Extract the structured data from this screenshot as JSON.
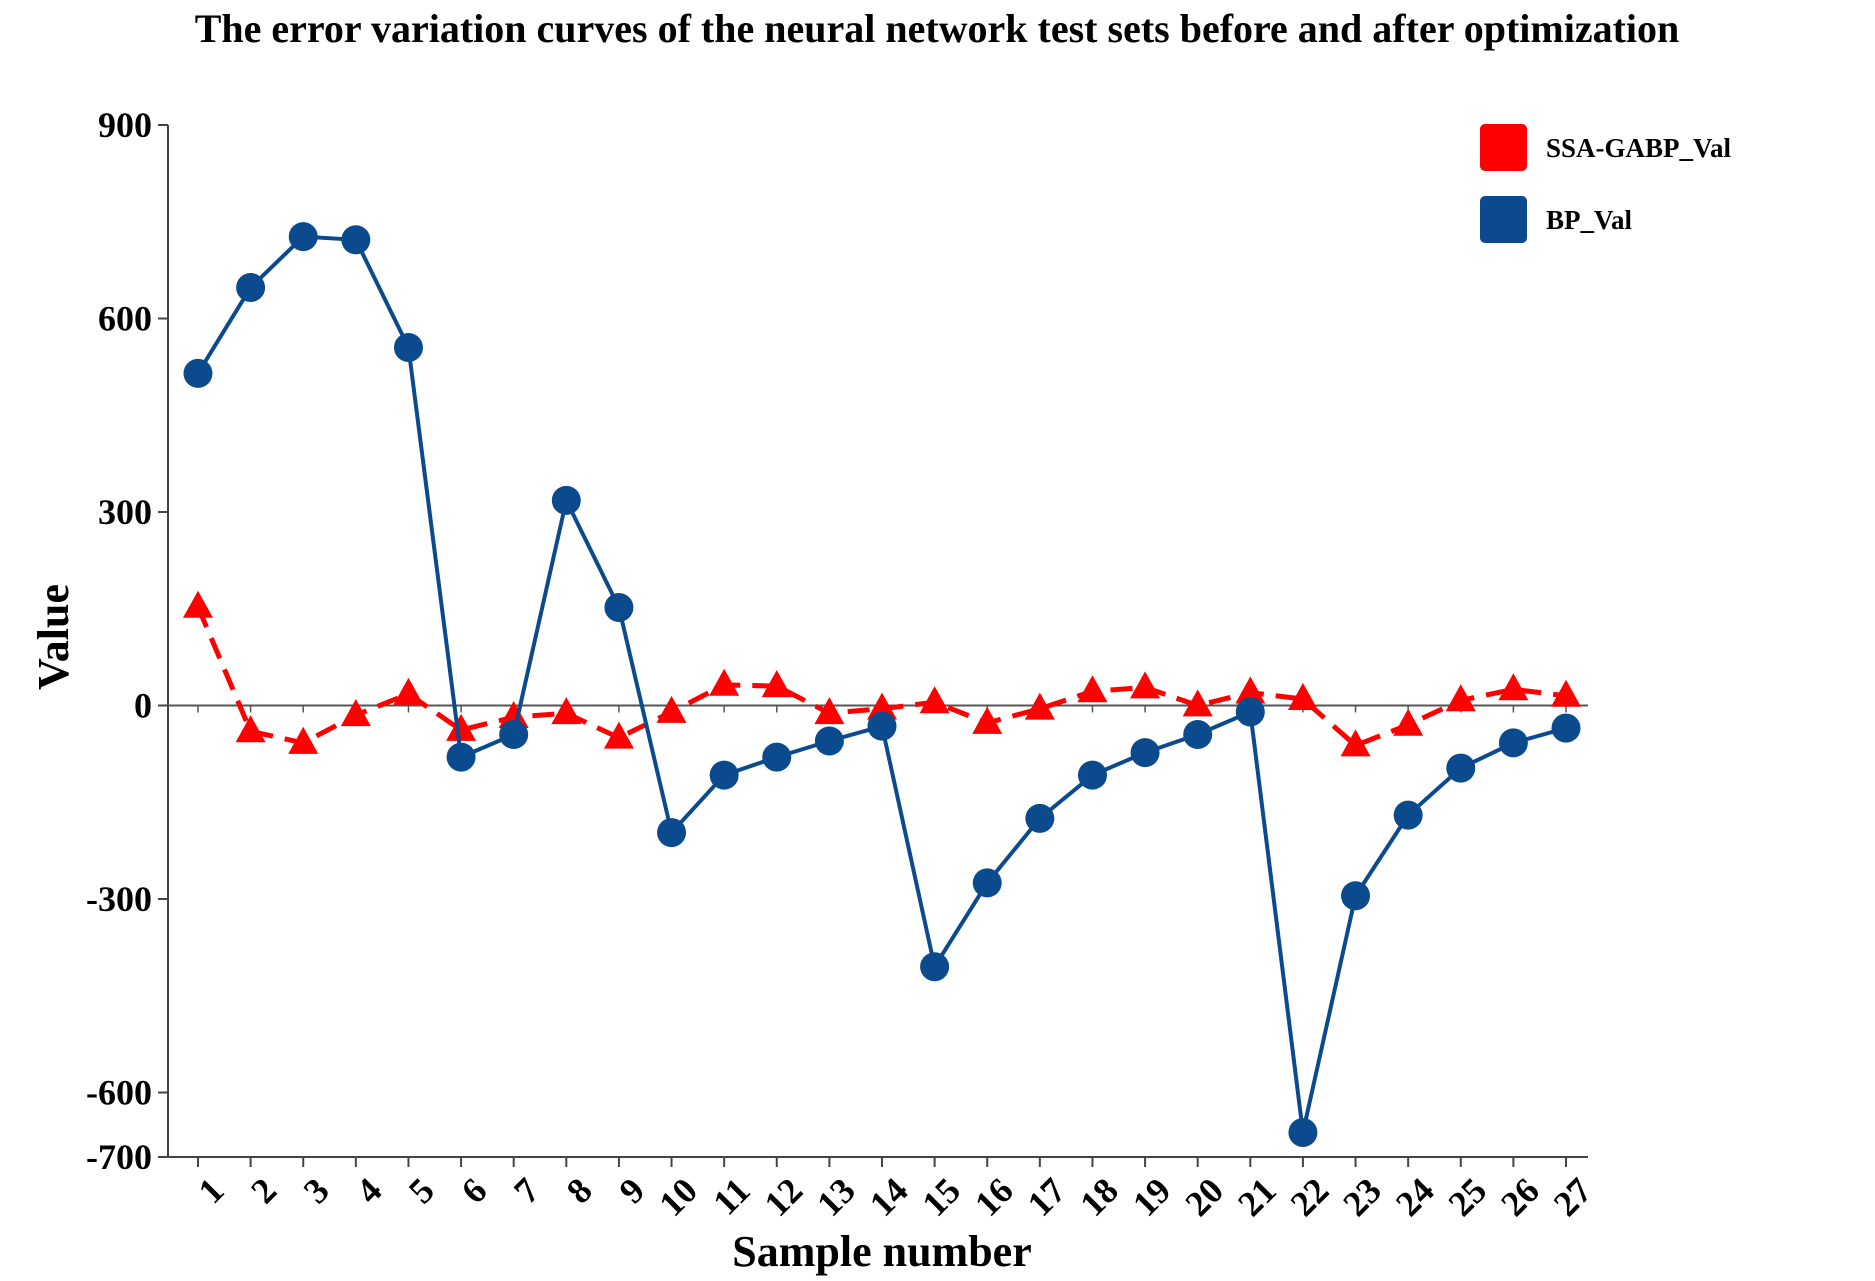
{
  "chart_data": {
    "type": "line",
    "title": "The error variation curves of the neural network test sets before and after optimization",
    "xlabel": "Sample number",
    "ylabel": "Value",
    "ylim": [
      -700,
      900
    ],
    "yticks": [
      900,
      600,
      300,
      0,
      -300,
      -600,
      -700
    ],
    "categories": [
      "1",
      "2",
      "3",
      "4",
      "5",
      "6",
      "7",
      "8",
      "9",
      "10",
      "11",
      "12",
      "13",
      "14",
      "15",
      "16",
      "17",
      "18",
      "19",
      "20",
      "21",
      "22",
      "23",
      "24",
      "25",
      "26",
      "27"
    ],
    "series": [
      {
        "name": "SSA-GABP_Val",
        "color": "#ff0000",
        "style": "dashed",
        "marker": "triangle",
        "values": [
          153,
          -40,
          -58,
          -15,
          18,
          -38,
          -18,
          -12,
          -50,
          -10,
          32,
          30,
          -12,
          -5,
          5,
          -27,
          -5,
          22,
          28,
          0,
          20,
          10,
          -62,
          -30,
          8,
          25,
          15
        ]
      },
      {
        "name": "BP_Val",
        "color": "#0b4a8c",
        "style": "solid",
        "marker": "circle",
        "values": [
          515,
          648,
          727,
          722,
          555,
          -80,
          -45,
          318,
          152,
          -197,
          -108,
          -80,
          -55,
          -32,
          -405,
          -275,
          -175,
          -108,
          -73,
          -45,
          -10,
          -662,
          -295,
          -170,
          -97,
          -58,
          -35
        ]
      }
    ],
    "legend": {
      "position": "top-right"
    }
  }
}
